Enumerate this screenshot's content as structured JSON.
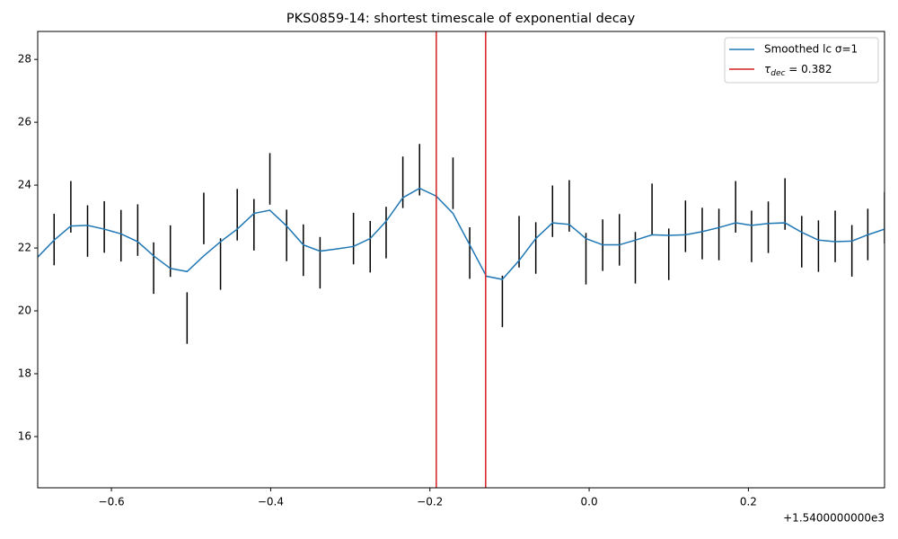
{
  "chart_data": {
    "type": "line",
    "title": "PKS0859-14: shortest timescale of exponential decay",
    "x_offset_label": "+1.5400000000e3",
    "x": [
      -0.693,
      -0.672,
      -0.651,
      -0.63,
      -0.609,
      -0.588,
      -0.567,
      -0.547,
      -0.526,
      -0.505,
      -0.484,
      -0.463,
      -0.442,
      -0.421,
      -0.401,
      -0.38,
      -0.359,
      -0.338,
      -0.317,
      -0.296,
      -0.275,
      -0.255,
      -0.234,
      -0.213,
      -0.192,
      -0.171,
      -0.15,
      -0.129,
      -0.109,
      -0.088,
      -0.067,
      -0.046,
      -0.025,
      -0.004,
      0.017,
      0.038,
      0.058,
      0.079,
      0.1,
      0.121,
      0.142,
      0.163,
      0.184,
      0.204,
      0.225,
      0.246,
      0.267,
      0.288,
      0.309,
      0.33,
      0.35,
      0.371
    ],
    "series": [
      {
        "name": "Smoothed lc σ=1",
        "color": "#1f77b4",
        "values": [
          21.7,
          22.25,
          22.7,
          22.72,
          22.6,
          22.45,
          22.2,
          21.75,
          21.35,
          21.25,
          21.75,
          22.2,
          22.6,
          23.1,
          23.2,
          22.7,
          22.1,
          21.9,
          21.97,
          22.05,
          22.3,
          22.85,
          23.6,
          23.9,
          23.65,
          23.1,
          22.1,
          21.1,
          21.0,
          21.6,
          22.3,
          22.8,
          22.75,
          22.3,
          22.1,
          22.1,
          22.25,
          22.42,
          22.4,
          22.42,
          22.52,
          22.65,
          22.8,
          22.72,
          22.78,
          22.8,
          22.5,
          22.25,
          22.2,
          22.22,
          22.42,
          22.6
        ]
      }
    ],
    "errorbars": {
      "color": "#000000",
      "values": [
        null,
        22.27,
        23.31,
        22.54,
        22.67,
        22.39,
        22.57,
        21.36,
        21.9,
        19.77,
        22.94,
        21.49,
        23.06,
        22.74,
        24.2,
        22.4,
        21.93,
        21.53,
        null,
        22.3,
        22.04,
        22.49,
        24.09,
        24.49,
        null,
        24.06,
        21.84,
        null,
        20.3,
        22.2,
        22.0,
        23.17,
        23.34,
        21.66,
        22.09,
        22.26,
        21.69,
        23.23,
        21.8,
        22.69,
        22.46,
        22.43,
        23.31,
        22.37,
        22.66,
        23.4,
        22.2,
        22.06,
        22.37,
        21.91,
        22.43,
        22.96
      ],
      "errors": [
        null,
        0.82,
        0.82,
        0.82,
        0.82,
        0.82,
        0.82,
        0.82,
        0.82,
        0.82,
        0.82,
        0.82,
        0.82,
        0.82,
        0.82,
        0.82,
        0.82,
        0.82,
        null,
        0.82,
        0.82,
        0.82,
        0.82,
        0.82,
        null,
        0.82,
        0.82,
        null,
        0.82,
        0.82,
        0.82,
        0.82,
        0.82,
        0.82,
        0.82,
        0.82,
        0.82,
        0.82,
        0.82,
        0.82,
        0.82,
        0.82,
        0.82,
        0.82,
        0.82,
        0.82,
        0.82,
        0.82,
        0.82,
        0.82,
        0.82,
        0.82
      ]
    },
    "vlines": {
      "name_parts": [
        "τ",
        "dec",
        " = 0.382"
      ],
      "color": "#d62020",
      "x": [
        -0.192,
        -0.13
      ]
    },
    "xlim": [
      -0.6926,
      0.371
    ],
    "ylim": [
      14.37,
      28.89
    ],
    "xticks": [
      {
        "value": -0.6,
        "label": "−0.6"
      },
      {
        "value": -0.4,
        "label": "−0.4"
      },
      {
        "value": -0.2,
        "label": "−0.2"
      },
      {
        "value": 0,
        "label": "0.0"
      },
      0.2
    ],
    "yticks": [
      16,
      18,
      20,
      22,
      24,
      26,
      28
    ],
    "grid": false,
    "legend": "upper right"
  }
}
